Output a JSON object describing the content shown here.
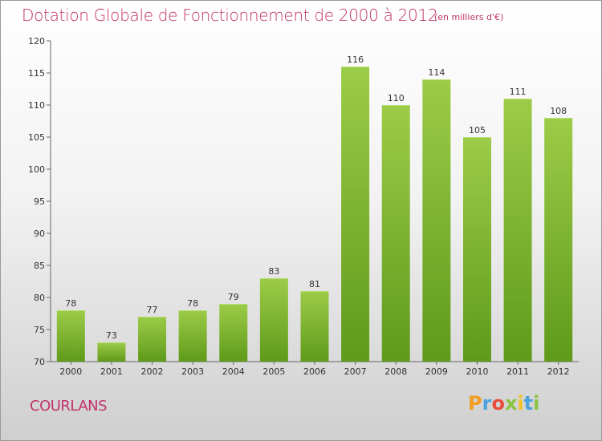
{
  "chart_data": {
    "type": "bar",
    "title": "Dotation Globale de Fonctionnement de 2000 à 2012",
    "subtitle": "(en milliers d'€)",
    "categories": [
      "2000",
      "2001",
      "2002",
      "2003",
      "2004",
      "2005",
      "2006",
      "2007",
      "2008",
      "2009",
      "2010",
      "2011",
      "2012"
    ],
    "values": [
      78,
      73,
      77,
      78,
      79,
      83,
      81,
      116,
      110,
      114,
      105,
      111,
      108
    ],
    "ylim": [
      70,
      120
    ],
    "yticks": [
      70,
      75,
      80,
      85,
      90,
      95,
      100,
      105,
      110,
      115,
      120
    ],
    "grid": false,
    "bar_color_top": "#9ccc48",
    "bar_color_bottom": "#5f9a1a"
  },
  "footer": {
    "commune": "COURLANS",
    "logo_letters": [
      "P",
      "r",
      "o",
      "x",
      "i",
      "t",
      "i"
    ],
    "logo_colors": [
      "#f39c1f",
      "#4aa3df",
      "#e84c3d",
      "#8ac33f",
      "#f3c21f",
      "#4aa3df",
      "#8ac33f"
    ]
  },
  "accent_color": "#c0336a"
}
